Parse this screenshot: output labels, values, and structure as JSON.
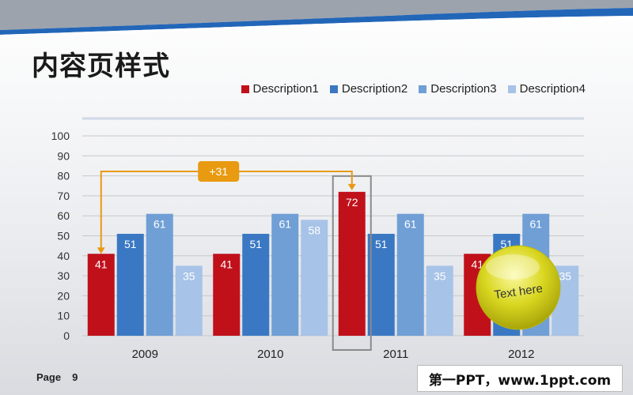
{
  "slide": {
    "title": "内容页样式",
    "page_label": "Page",
    "page_number": "9",
    "watermark": "第一PPT，www.1ppt.com"
  },
  "colors": {
    "series": [
      "#c0111b",
      "#3a78c3",
      "#6f9fd5",
      "#a7c3e8"
    ],
    "accent": "#e89a10",
    "badge": "#d9d620"
  },
  "annotations": {
    "delta_label": "+31",
    "badge_text": "Text here"
  },
  "chart_data": {
    "type": "bar",
    "categories": [
      "2009",
      "2010",
      "2011",
      "2012"
    ],
    "series": [
      {
        "name": "Description1",
        "values": [
          41,
          41,
          72,
          41
        ]
      },
      {
        "name": "Description2",
        "values": [
          51,
          51,
          51,
          51
        ]
      },
      {
        "name": "Description3",
        "values": [
          61,
          61,
          61,
          61
        ]
      },
      {
        "name": "Description4",
        "values": [
          35,
          58,
          35,
          35
        ]
      }
    ],
    "ylim": [
      0,
      100
    ],
    "yticks": [
      0,
      10,
      20,
      30,
      40,
      50,
      60,
      70,
      80,
      90,
      100
    ],
    "grid": true,
    "legend": "top-right",
    "highlight_category": "2011"
  }
}
